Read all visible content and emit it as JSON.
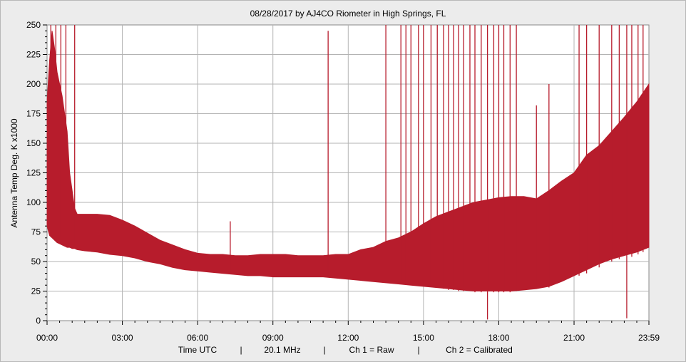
{
  "chart_data": {
    "type": "area",
    "title": "08/28/2017  by  AJ4CO Riometer  in  High Springs, FL",
    "ylabel": "Antenna Temp Deg. K x1000",
    "xlabel": "",
    "footer": {
      "time": "Time UTC",
      "frequency": "20.1 MHz",
      "ch1": "Ch 1 = Raw",
      "ch2": "Ch 2 = Calibrated",
      "separator": "|"
    },
    "x_ticks": [
      "00:00",
      "03:00",
      "06:00",
      "09:00",
      "12:00",
      "15:00",
      "18:00",
      "21:00",
      "23:59"
    ],
    "y_ticks": [
      0,
      25,
      50,
      75,
      100,
      125,
      150,
      175,
      200,
      225,
      250
    ],
    "xlim_hours": [
      0,
      23.983
    ],
    "ylim": [
      0,
      250
    ],
    "grid": true,
    "colors": {
      "series": "#b71c2c",
      "grid": "#b3b3b3",
      "plot_bg": "#ffffff",
      "frame_bg": "#ececec"
    },
    "series": [
      {
        "hours": [
          0,
          0.1,
          0.2,
          0.3,
          0.4,
          0.5,
          0.6,
          0.7,
          0.8,
          0.9,
          1.0,
          1.1,
          1.2,
          1.5,
          2.0,
          2.5,
          3.0,
          3.5,
          4.0,
          4.5,
          5.0,
          5.5,
          6.0,
          6.5,
          7.0,
          7.5,
          8.0,
          8.5,
          9.0,
          9.5,
          10.0,
          10.5,
          11.0,
          11.5,
          12.0,
          12.5,
          13.0,
          13.5,
          14.0,
          14.5,
          15.0,
          15.5,
          16.0,
          16.5,
          17.0,
          17.5,
          18.0,
          18.5,
          19.0,
          19.5,
          20.0,
          20.5,
          21.0,
          21.5,
          22.0,
          22.5,
          23.0,
          23.5,
          23.983
        ],
        "upper": [
          185,
          220,
          245,
          230,
          210,
          200,
          190,
          175,
          160,
          125,
          110,
          95,
          90,
          90,
          90,
          89,
          85,
          80,
          74,
          68,
          64,
          60,
          57,
          56,
          56,
          55,
          55,
          56,
          56,
          56,
          55,
          55,
          55,
          56,
          56,
          60,
          62,
          67,
          70,
          75,
          82,
          88,
          92,
          96,
          100,
          102,
          104,
          105,
          105,
          103,
          110,
          118,
          125,
          140,
          148,
          160,
          172,
          185,
          200
        ],
        "lower": [
          80,
          72,
          70,
          68,
          66,
          65,
          64,
          63,
          62,
          62,
          61,
          61,
          60,
          59,
          58,
          56,
          55,
          53,
          50,
          48,
          45,
          43,
          42,
          41,
          40,
          39,
          38,
          38,
          37,
          37,
          37,
          37,
          37,
          36,
          35,
          34,
          33,
          32,
          31,
          30,
          29,
          28,
          27,
          26,
          25,
          25,
          25,
          25,
          26,
          27,
          29,
          33,
          38,
          43,
          48,
          52,
          55,
          58,
          62
        ]
      }
    ],
    "spikes": [
      {
        "hour": 0.15,
        "top": 250,
        "bottom": 80
      },
      {
        "hour": 0.35,
        "top": 250,
        "bottom": 72
      },
      {
        "hour": 0.55,
        "top": 250,
        "bottom": 70
      },
      {
        "hour": 0.75,
        "top": 250,
        "bottom": 66
      },
      {
        "hour": 1.1,
        "top": 250,
        "bottom": 65
      },
      {
        "hour": 7.3,
        "top": 84,
        "bottom": 40
      },
      {
        "hour": 11.2,
        "top": 245,
        "bottom": 37
      },
      {
        "hour": 13.5,
        "top": 250,
        "bottom": 35
      },
      {
        "hour": 14.1,
        "top": 250,
        "bottom": 34
      },
      {
        "hour": 14.3,
        "top": 250,
        "bottom": 33
      },
      {
        "hour": 14.5,
        "top": 250,
        "bottom": 33
      },
      {
        "hour": 14.8,
        "top": 250,
        "bottom": 31
      },
      {
        "hour": 15.0,
        "top": 250,
        "bottom": 30
      },
      {
        "hour": 15.3,
        "top": 250,
        "bottom": 29
      },
      {
        "hour": 15.55,
        "top": 250,
        "bottom": 28
      },
      {
        "hour": 15.8,
        "top": 250,
        "bottom": 27
      },
      {
        "hour": 16.0,
        "top": 250,
        "bottom": 26
      },
      {
        "hour": 16.2,
        "top": 250,
        "bottom": 26
      },
      {
        "hour": 16.4,
        "top": 250,
        "bottom": 25
      },
      {
        "hour": 16.6,
        "top": 250,
        "bottom": 25
      },
      {
        "hour": 16.85,
        "top": 250,
        "bottom": 25
      },
      {
        "hour": 17.05,
        "top": 250,
        "bottom": 24
      },
      {
        "hour": 17.3,
        "top": 250,
        "bottom": 24
      },
      {
        "hour": 17.55,
        "top": 250,
        "bottom": 1
      },
      {
        "hour": 17.8,
        "top": 250,
        "bottom": 24
      },
      {
        "hour": 18.0,
        "top": 250,
        "bottom": 24
      },
      {
        "hour": 18.2,
        "top": 250,
        "bottom": 24
      },
      {
        "hour": 18.45,
        "top": 250,
        "bottom": 24
      },
      {
        "hour": 18.7,
        "top": 250,
        "bottom": 25
      },
      {
        "hour": 19.5,
        "top": 182,
        "bottom": 27
      },
      {
        "hour": 20.0,
        "top": 200,
        "bottom": 28
      },
      {
        "hour": 21.2,
        "top": 250,
        "bottom": 38
      },
      {
        "hour": 21.5,
        "top": 250,
        "bottom": 40
      },
      {
        "hour": 22.0,
        "top": 250,
        "bottom": 45
      },
      {
        "hour": 22.5,
        "top": 250,
        "bottom": 50
      },
      {
        "hour": 22.8,
        "top": 250,
        "bottom": 52
      },
      {
        "hour": 23.1,
        "top": 250,
        "bottom": 2
      },
      {
        "hour": 23.3,
        "top": 250,
        "bottom": 54
      },
      {
        "hour": 23.55,
        "top": 250,
        "bottom": 56
      },
      {
        "hour": 23.75,
        "top": 250,
        "bottom": 58
      }
    ]
  }
}
